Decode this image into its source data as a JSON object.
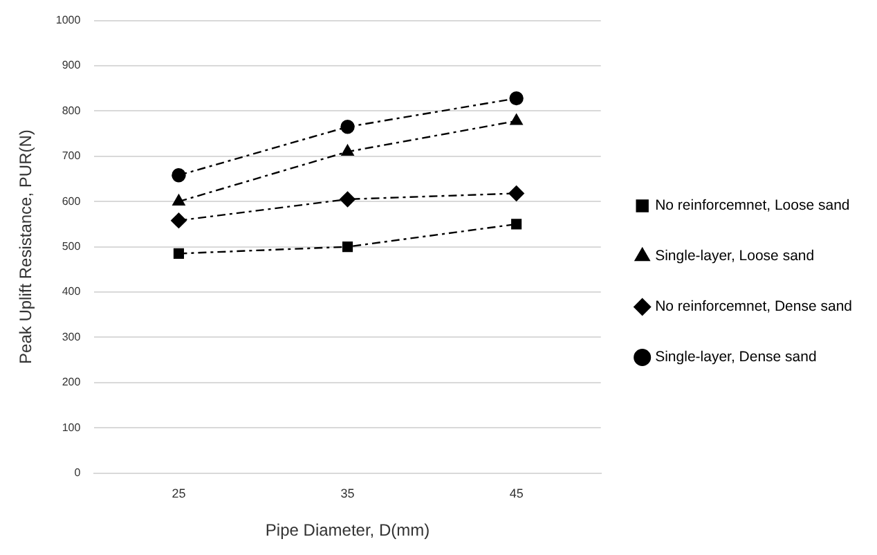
{
  "chart_data": {
    "type": "line",
    "xlabel": "Pipe Diameter, D(mm)",
    "ylabel": "Peak Uplift Resistance, PUR(N)",
    "categories": [
      "25",
      "35",
      "45"
    ],
    "series": [
      {
        "name": "No reinforcemnet, Loose sand",
        "color": "#000000",
        "marker": "square",
        "values": [
          485,
          500,
          550
        ]
      },
      {
        "name": "Single-layer, Loose sand",
        "color": "#000000",
        "marker": "triangle",
        "values": [
          600,
          710,
          778
        ]
      },
      {
        "name": "No reinforcemnet, Dense sand",
        "color": "#000000",
        "marker": "diamond",
        "values": [
          558,
          605,
          618
        ]
      },
      {
        "name": "Single-layer, Dense sand",
        "color": "#000000",
        "marker": "circle",
        "values": [
          658,
          765,
          828
        ]
      }
    ],
    "ylim": [
      0,
      1000
    ],
    "yticks": [
      0,
      100,
      200,
      300,
      400,
      500,
      600,
      700,
      800,
      900,
      1000
    ],
    "grid": "y",
    "legend": "right",
    "line_style": "dashed"
  }
}
